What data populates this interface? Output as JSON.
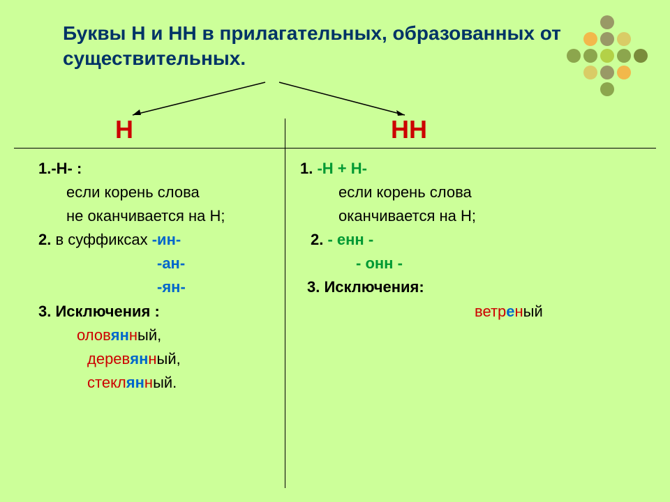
{
  "title": "Буквы  Н и НН в прилагательных, образованных от существительных.",
  "headers": {
    "left": "Н",
    "right": "НН"
  },
  "left": {
    "r1": "1.-Н- :",
    "r1a": "если корень слова",
    "r1b": "не оканчивается на Н;",
    "r2pre": "2. ",
    "r2mid": "в суффиксах  ",
    "s1": "-ин-",
    "s2": "-ан-",
    "s3": "-ян-",
    "r3": "3. Исключения :",
    "ex1a": "олов",
    "ex1b": "ян",
    "ex1c": "н",
    "ex1d": "ый,",
    "ex2a": "дерев",
    "ex2b": "ян",
    "ex2c": "н",
    "ex2d": "ый,",
    "ex3a": "стекл",
    "ex3b": "ян",
    "ex3c": "н",
    "ex3d": "ый."
  },
  "right": {
    "r1pre": "1.  ",
    "r1": "-Н + Н-",
    "r1a": "если корень слова",
    "r1b": "оканчивается на Н;",
    "r2pre": "2.   ",
    "s1": "- енн -",
    "s2": "- онн -",
    "r3": "3. Исключения:",
    "ex1a": "ветр",
    "ex1b": "е",
    "ex1c": "н",
    "ex1d": "ый"
  },
  "dots": {
    "colors": [
      [
        "#ccff99",
        "#ccff99",
        "#999966",
        "#ccff99",
        "#ccff99"
      ],
      [
        "#ccff99",
        "#f2b84b",
        "#999966",
        "#d9cc66",
        "#ccff99"
      ],
      [
        "#8ca64d",
        "#8ca64d",
        "#b3d147",
        "#8ca64d",
        "#7a8c3b"
      ],
      [
        "#ccff99",
        "#d9cc66",
        "#999966",
        "#f2b84b",
        "#ccff99"
      ],
      [
        "#ccff99",
        "#ccff99",
        "#8ca64d",
        "#ccff99",
        "#ccff99"
      ]
    ]
  }
}
